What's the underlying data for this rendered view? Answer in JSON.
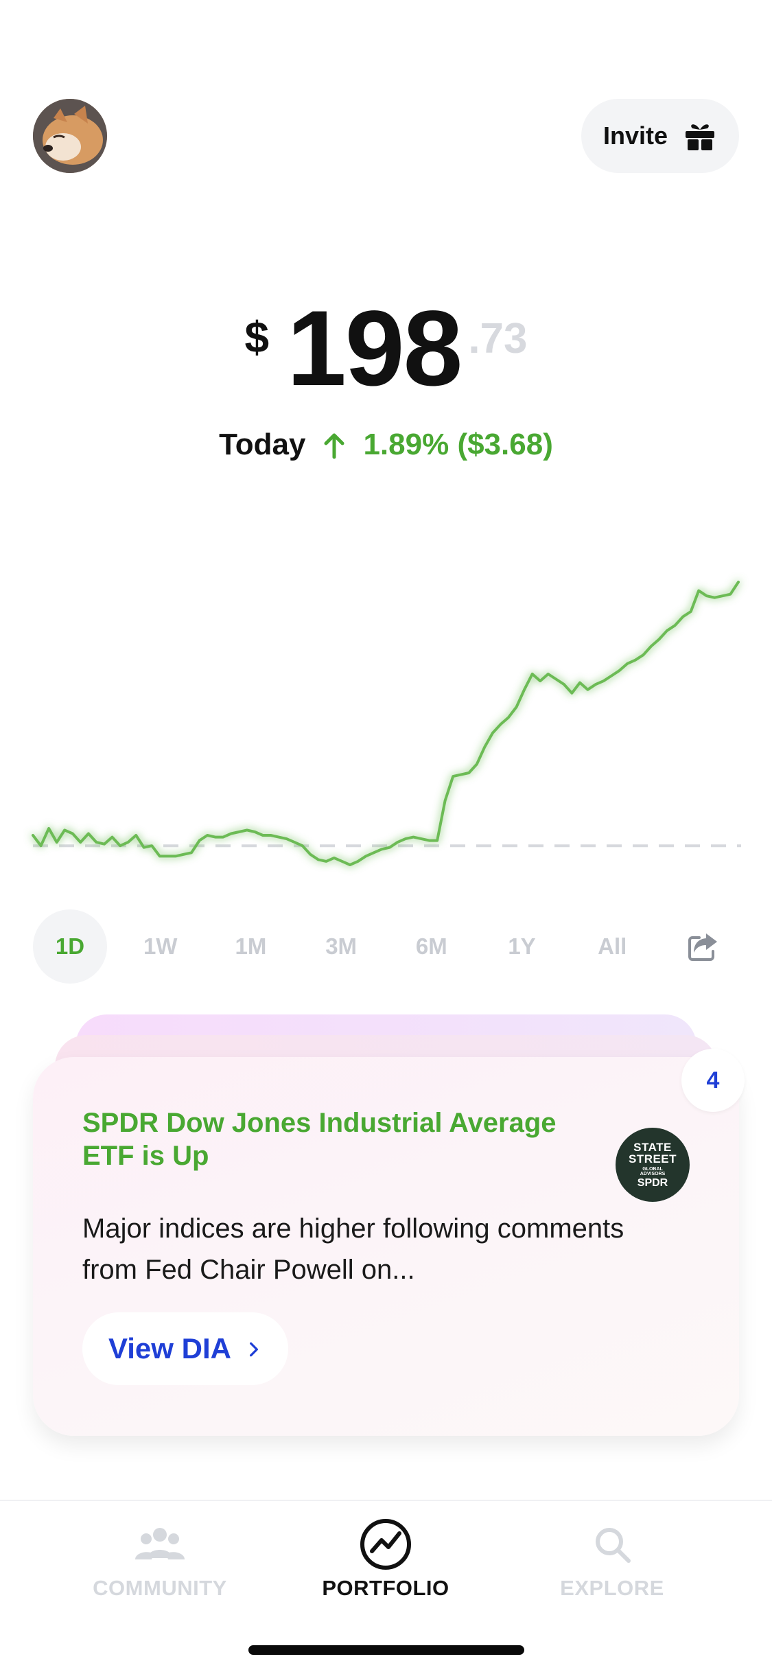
{
  "header": {
    "invite_label": "Invite"
  },
  "portfolio": {
    "currency_symbol": "$",
    "balance_whole": "198",
    "balance_cents": ".73",
    "period_label": "Today",
    "change_text": "1.89% ($3.68)",
    "change_direction": "up"
  },
  "chart_data": {
    "type": "line",
    "y": [
      0.6,
      0.0,
      1.0,
      0.2,
      0.9,
      0.7,
      0.2,
      0.7,
      0.2,
      0.1,
      0.5,
      0.0,
      0.2,
      0.6,
      -0.1,
      0.0,
      -0.6,
      -0.6,
      -0.6,
      -0.5,
      -0.4,
      0.3,
      0.6,
      0.5,
      0.5,
      0.7,
      0.8,
      0.9,
      0.8,
      0.6,
      0.6,
      0.5,
      0.4,
      0.2,
      0.0,
      -0.5,
      -0.8,
      -0.9,
      -0.7,
      -0.9,
      -1.1,
      -0.9,
      -0.6,
      -0.4,
      -0.2,
      -0.1,
      0.2,
      0.4,
      0.5,
      0.4,
      0.3,
      0.3,
      2.6,
      4.0,
      4.1,
      4.2,
      4.7,
      5.7,
      6.5,
      7.0,
      7.4,
      8.0,
      9.0,
      9.9,
      9.5,
      9.9,
      9.6,
      9.3,
      8.8,
      9.4,
      9.0,
      9.3,
      9.5,
      9.8,
      10.1,
      10.5,
      10.7,
      11.0,
      11.5,
      11.9,
      12.4,
      12.7,
      13.2,
      13.5,
      14.7,
      14.4,
      14.3,
      14.4,
      14.5,
      15.2
    ],
    "baseline": 0,
    "color": "#6cbb55",
    "baseline_color": "#d7d9de"
  },
  "ranges": {
    "items": [
      {
        "label": "1D",
        "active": true
      },
      {
        "label": "1W",
        "active": false
      },
      {
        "label": "1M",
        "active": false
      },
      {
        "label": "3M",
        "active": false
      },
      {
        "label": "6M",
        "active": false
      },
      {
        "label": "1Y",
        "active": false
      },
      {
        "label": "All",
        "active": false
      }
    ],
    "share_icon": "share-icon"
  },
  "card": {
    "title": "SPDR Dow Jones Industrial Average ETF is Up",
    "body": "Major indices are higher following comments from Fed Chair Powell on...",
    "cta_label": "View DIA",
    "logo_lines": [
      "STATE",
      "STREET",
      "GLOBAL",
      "ADVISORS",
      "SPDR"
    ],
    "badge_count": "4"
  },
  "tabbar": {
    "community_label": "COMMUNITY",
    "portfolio_label": "PORTFOLIO",
    "explore_label": "EXPLORE",
    "active": "portfolio"
  },
  "colors": {
    "accent_green": "#49a832",
    "link_blue": "#1f3fd6",
    "inactive_gray": "#c9ccd2"
  }
}
